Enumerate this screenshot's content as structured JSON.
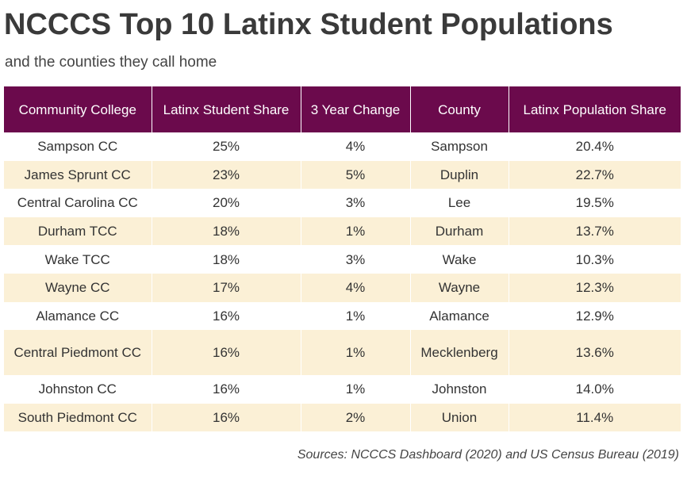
{
  "title": "NCCCS Top 10 Latinx Student Populations",
  "subtitle": "and the counties they call home",
  "table": {
    "headers": [
      "Community College",
      "Latinx Student Share",
      "3 Year Change",
      "County",
      "Latinx Population Share"
    ],
    "rows": [
      [
        "Sampson CC",
        "25%",
        "4%",
        "Sampson",
        "20.4%"
      ],
      [
        "James Sprunt CC",
        "23%",
        "5%",
        "Duplin",
        "22.7%"
      ],
      [
        "Central Carolina CC",
        "20%",
        "3%",
        "Lee",
        "19.5%"
      ],
      [
        "Durham TCC",
        "18%",
        "1%",
        "Durham",
        "13.7%"
      ],
      [
        "Wake TCC",
        "18%",
        "3%",
        "Wake",
        "10.3%"
      ],
      [
        "Wayne CC",
        "17%",
        "4%",
        "Wayne",
        "12.3%"
      ],
      [
        "Alamance CC",
        "16%",
        "1%",
        "Alamance",
        "12.9%"
      ],
      [
        "Central Piedmont CC",
        "16%",
        "1%",
        "Mecklenberg",
        "13.6%"
      ],
      [
        "Johnston CC",
        "16%",
        "1%",
        "Johnston",
        "14.0%"
      ],
      [
        "South Piedmont CC",
        "16%",
        "2%",
        "Union",
        "11.4%"
      ]
    ]
  },
  "source": "Sources: NCCCS Dashboard (2020) and US Census Bureau (2019)",
  "colors": {
    "header_bg": "#6b0a4c",
    "band_bg": "#fbf0d6"
  }
}
